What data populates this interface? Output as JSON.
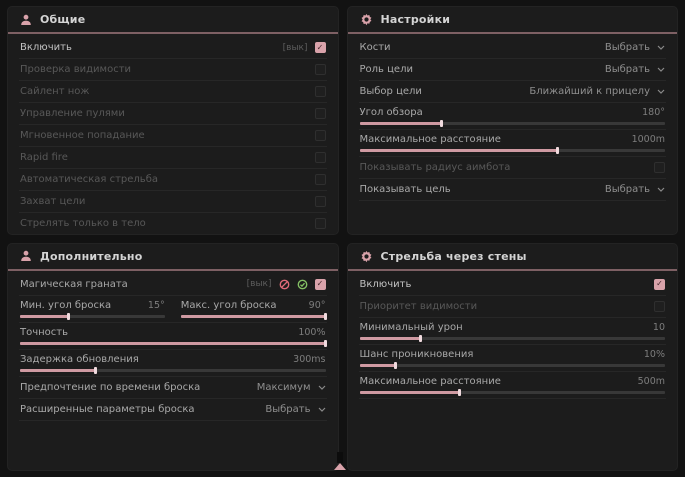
{
  "theme": {
    "accent": "#d9a2aa",
    "header_line": "#7e6064",
    "green": "#84c064",
    "red": "#e06a78"
  },
  "general": {
    "title": "Общие",
    "rows": {
      "enable": {
        "label": "Включить",
        "tag": "[вык]",
        "checked": true
      },
      "visibility_check": {
        "label": "Проверка видимости",
        "checked": false
      },
      "silent_knife": {
        "label": "Сайлент нож",
        "checked": false
      },
      "bullet_control": {
        "label": "Управление пулями",
        "checked": false
      },
      "instant_hit": {
        "label": "Мгновенное попадание",
        "checked": false
      },
      "rapid_fire": {
        "label": "Rapid fire",
        "checked": false
      },
      "auto_fire": {
        "label": "Автоматическая стрельба",
        "checked": false
      },
      "target_lock": {
        "label": "Захват цели",
        "checked": false
      },
      "body_only": {
        "label": "Стрелять только в тело",
        "checked": false
      }
    }
  },
  "settings": {
    "title": "Настройки",
    "rows": {
      "bones": {
        "label": "Кости",
        "value": "Выбрать"
      },
      "target_role": {
        "label": "Роль цели",
        "value": "Выбрать"
      },
      "target_select": {
        "label": "Выбор цели",
        "value": "Ближайший к прицелу"
      },
      "fov": {
        "label": "Угол обзора",
        "value": "180°",
        "fill": 27
      },
      "max_distance": {
        "label": "Максимальное расстояние",
        "value": "1000m",
        "fill": 65
      },
      "show_radius": {
        "label": "Показывать радиус аимбота",
        "checked": false
      },
      "show_target": {
        "label": "Показывать цель",
        "value": "Выбрать"
      }
    }
  },
  "additional": {
    "title": "Дополнительно",
    "rows": {
      "magic_grenade": {
        "label": "Магическая граната",
        "tag": "[вык]",
        "checked": true
      },
      "min_angle": {
        "label": "Мин. угол броска",
        "value": "15°",
        "fill": 34
      },
      "max_angle": {
        "label": "Макс. угол броска",
        "value": "90°",
        "fill": 100
      },
      "accuracy": {
        "label": "Точность",
        "value": "100%",
        "fill": 100
      },
      "update_delay": {
        "label": "Задержка обновления",
        "value": "300ms",
        "fill": 25
      },
      "throw_time": {
        "label": "Предпочтение по времени броска",
        "value": "Максимум"
      },
      "advanced": {
        "label": "Расширенные параметры броска",
        "value": "Выбрать"
      }
    }
  },
  "wallbang": {
    "title": "Стрельба через стены",
    "rows": {
      "enable": {
        "label": "Включить",
        "checked": true
      },
      "visibility_priority": {
        "label": "Приоритет видимости",
        "checked": false
      },
      "min_damage": {
        "label": "Минимальный урон",
        "value": "10",
        "fill": 20
      },
      "penetration": {
        "label": "Шанс проникновения",
        "value": "10%",
        "fill": 12
      },
      "max_distance": {
        "label": "Максимальное расстояние",
        "value": "500m",
        "fill": 33
      }
    }
  }
}
